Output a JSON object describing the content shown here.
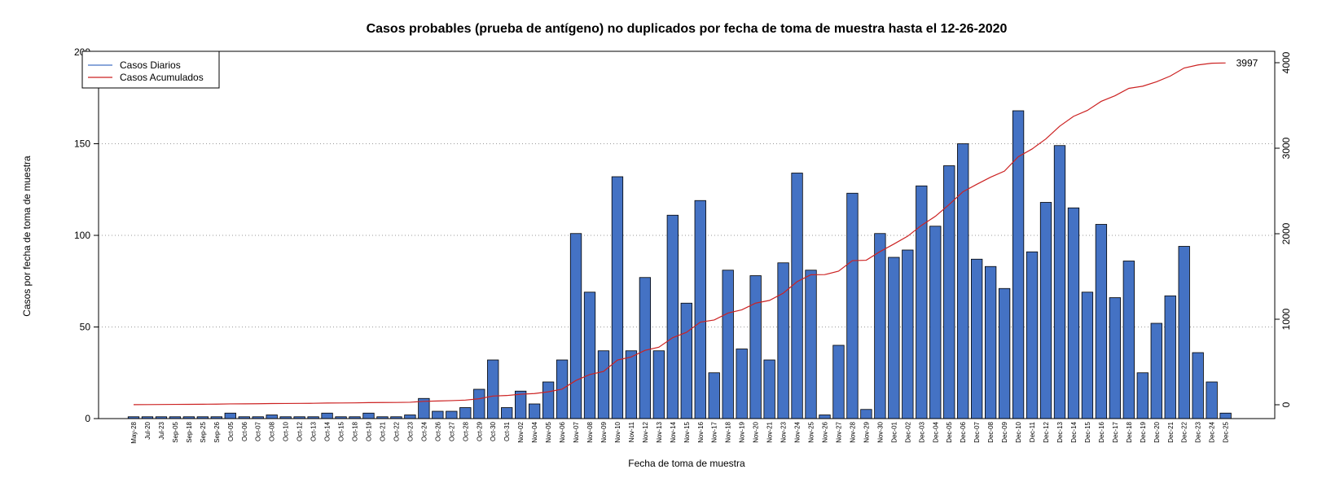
{
  "chart_data": {
    "type": "bar",
    "title": "Casos probables (prueba de antígeno) no duplicados por fecha de toma de muestra hasta el 12-26-2020",
    "xlabel": "Fecha de toma de muestra",
    "ylabel": "Casos por fecha de toma de muestra",
    "ylim": [
      0,
      200
    ],
    "y_ticks": [
      0,
      50,
      100,
      150,
      200
    ],
    "y2lim": [
      -75,
      4150
    ],
    "y2_ticks": [
      0,
      1000,
      2000,
      3000,
      4000
    ],
    "grid": "horizontal dotted",
    "legend_position": "top-left",
    "legend": [
      "Casos Diarios",
      "Casos Acumulados"
    ],
    "colors": {
      "bars": "#4472C4",
      "bar_edge": "#000000",
      "cumulative_line": "#CC2222",
      "legend_daily": "#4472C4",
      "legend_cumulative": "#CC2222",
      "grid": "#999999"
    },
    "categories": [
      "May-28",
      "Jul-20",
      "Jul-23",
      "Sep-05",
      "Sep-18",
      "Sep-25",
      "Sep-26",
      "Oct-05",
      "Oct-06",
      "Oct-07",
      "Oct-08",
      "Oct-10",
      "Oct-12",
      "Oct-13",
      "Oct-14",
      "Oct-15",
      "Oct-18",
      "Oct-19",
      "Oct-21",
      "Oct-22",
      "Oct-23",
      "Oct-24",
      "Oct-26",
      "Oct-27",
      "Oct-28",
      "Oct-29",
      "Oct-30",
      "Oct-31",
      "Nov-02",
      "Nov-04",
      "Nov-05",
      "Nov-06",
      "Nov-07",
      "Nov-08",
      "Nov-09",
      "Nov-10",
      "Nov-11",
      "Nov-12",
      "Nov-13",
      "Nov-14",
      "Nov-15",
      "Nov-16",
      "Nov-17",
      "Nov-18",
      "Nov-19",
      "Nov-20",
      "Nov-21",
      "Nov-23",
      "Nov-24",
      "Nov-25",
      "Nov-26",
      "Nov-27",
      "Nov-28",
      "Nov-29",
      "Nov-30",
      "Dec-01",
      "Dec-02",
      "Dec-03",
      "Dec-04",
      "Dec-05",
      "Dec-06",
      "Dec-07",
      "Dec-08",
      "Dec-09",
      "Dec-10",
      "Dec-11",
      "Dec-12",
      "Dec-13",
      "Dec-14",
      "Dec-15",
      "Dec-16",
      "Dec-17",
      "Dec-18",
      "Dec-19",
      "Dec-20",
      "Dec-21",
      "Dec-22",
      "Dec-23",
      "Dec-24",
      "Dec-25"
    ],
    "series": [
      {
        "name": "Casos Diarios",
        "type": "bar",
        "values": [
          1,
          1,
          1,
          1,
          1,
          1,
          1,
          3,
          1,
          1,
          2,
          1,
          1,
          1,
          3,
          1,
          1,
          3,
          1,
          1,
          2,
          11,
          4,
          4,
          6,
          16,
          32,
          6,
          15,
          8,
          20,
          32,
          101,
          69,
          37,
          132,
          37,
          77,
          37,
          111,
          63,
          119,
          25,
          81,
          38,
          78,
          32,
          85,
          134,
          81,
          2,
          40,
          123,
          5,
          101,
          88,
          92,
          127,
          105,
          138,
          150,
          87,
          83,
          71,
          168,
          91,
          118,
          149,
          115,
          69,
          106,
          66,
          86,
          25,
          52,
          67,
          94,
          36,
          20,
          3
        ]
      },
      {
        "name": "Casos Acumulados",
        "type": "line",
        "values": [
          1,
          2,
          3,
          4,
          5,
          6,
          7,
          10,
          11,
          12,
          14,
          15,
          16,
          17,
          20,
          21,
          22,
          25,
          26,
          27,
          29,
          40,
          44,
          48,
          54,
          70,
          102,
          108,
          123,
          131,
          151,
          183,
          284,
          353,
          390,
          522,
          559,
          636,
          673,
          784,
          847,
          966,
          991,
          1072,
          1110,
          1188,
          1220,
          1305,
          1439,
          1520,
          1522,
          1562,
          1685,
          1690,
          1791,
          1879,
          1971,
          2098,
          2203,
          2341,
          2491,
          2578,
          2661,
          2732,
          2900,
          2991,
          3109,
          3258,
          3373,
          3442,
          3548,
          3614,
          3700,
          3725,
          3777,
          3844,
          3938,
          3974,
          3994,
          3997
        ]
      }
    ],
    "annotations": [
      "3997"
    ]
  }
}
